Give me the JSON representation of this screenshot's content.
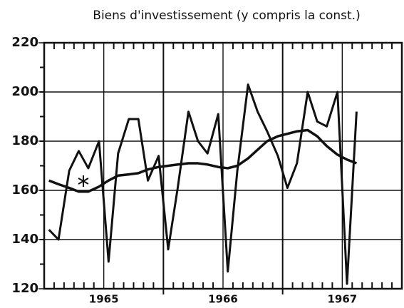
{
  "chart_data": {
    "type": "line",
    "title": "Biens d'investissement (y compris la const.)",
    "x": [
      1965.04,
      1965.12,
      1965.21,
      1965.29,
      1965.37,
      1965.46,
      1965.54,
      1965.62,
      1965.71,
      1965.79,
      1965.87,
      1965.96,
      1966.04,
      1966.12,
      1966.21,
      1966.29,
      1966.37,
      1966.46,
      1966.54,
      1966.62,
      1966.71,
      1966.79,
      1966.87,
      1966.96,
      1967.04,
      1967.12,
      1967.21,
      1967.29,
      1967.37,
      1967.46,
      1967.54,
      1967.62
    ],
    "series": [
      {
        "color": "#111111",
        "values": [
          144,
          140,
          168,
          176,
          169,
          180,
          131,
          175,
          189,
          189,
          164,
          174,
          136,
          161,
          192,
          180,
          175,
          191,
          127,
          168,
          203,
          192,
          184,
          174,
          161,
          171,
          200,
          188,
          186,
          200,
          122,
          192
        ]
      },
      {
        "color": "#111111",
        "values": [
          164,
          162.5,
          161,
          159.5,
          159.5,
          161.5,
          164,
          166,
          166.5,
          167,
          168.5,
          169.5,
          170,
          170.5,
          171,
          171,
          170.5,
          169.5,
          169,
          170,
          173,
          176.5,
          180,
          182,
          183,
          184,
          184.5,
          182,
          178,
          174.5,
          172.5,
          171
        ]
      }
    ],
    "xlim": [
      1965,
      1968
    ],
    "xticks": [
      {
        "value": 1965.5,
        "label": "1965"
      },
      {
        "value": 1966.5,
        "label": "1966"
      },
      {
        "value": 1967.5,
        "label": "1967"
      }
    ],
    "ylim": [
      120,
      220
    ],
    "yticks": [
      120,
      140,
      160,
      180,
      200,
      220
    ],
    "grid": true
  }
}
